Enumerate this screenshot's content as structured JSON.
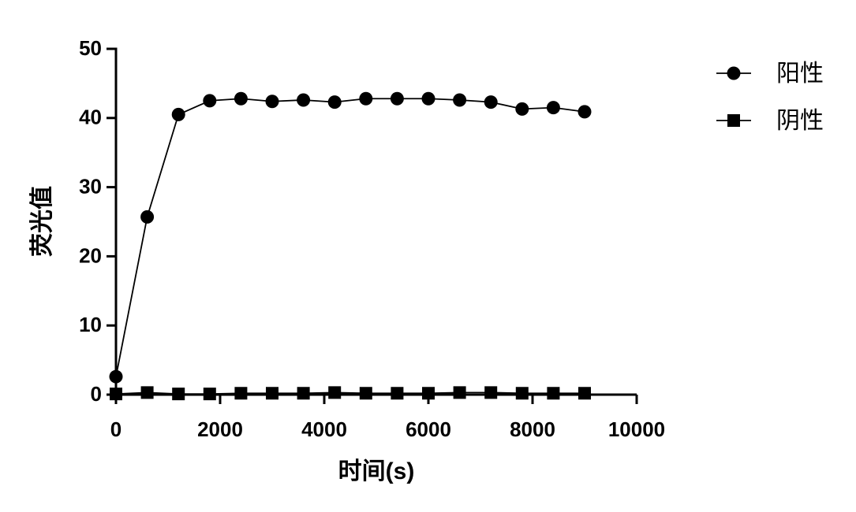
{
  "chart_data": {
    "type": "line",
    "x_label": "时间(s)",
    "y_label": "荧光值",
    "x": [
      0,
      600,
      1200,
      1800,
      2400,
      3000,
      3600,
      4200,
      4800,
      5400,
      6000,
      6600,
      7200,
      7800,
      8400,
      9000
    ],
    "series": [
      {
        "name": "阳性",
        "color": "#000000",
        "marker": "circle",
        "values": [
          2.6,
          25.7,
          40.5,
          42.5,
          42.8,
          42.4,
          42.6,
          42.3,
          42.8,
          42.8,
          42.8,
          42.6,
          42.3,
          41.3,
          41.5,
          40.9
        ]
      },
      {
        "name": "阴性",
        "color": "#000000",
        "marker": "square",
        "values": [
          0.1,
          0.3,
          0.1,
          0.1,
          0.2,
          0.2,
          0.2,
          0.3,
          0.2,
          0.2,
          0.2,
          0.3,
          0.3,
          0.2,
          0.2,
          0.2
        ]
      }
    ],
    "xlim": [
      0,
      10000
    ],
    "xticks": [
      0,
      2000,
      4000,
      6000,
      8000,
      10000
    ],
    "ylim": [
      0,
      50
    ],
    "yticks": [
      0,
      10,
      20,
      30,
      40,
      50
    ],
    "grid": false,
    "legend": "right"
  }
}
